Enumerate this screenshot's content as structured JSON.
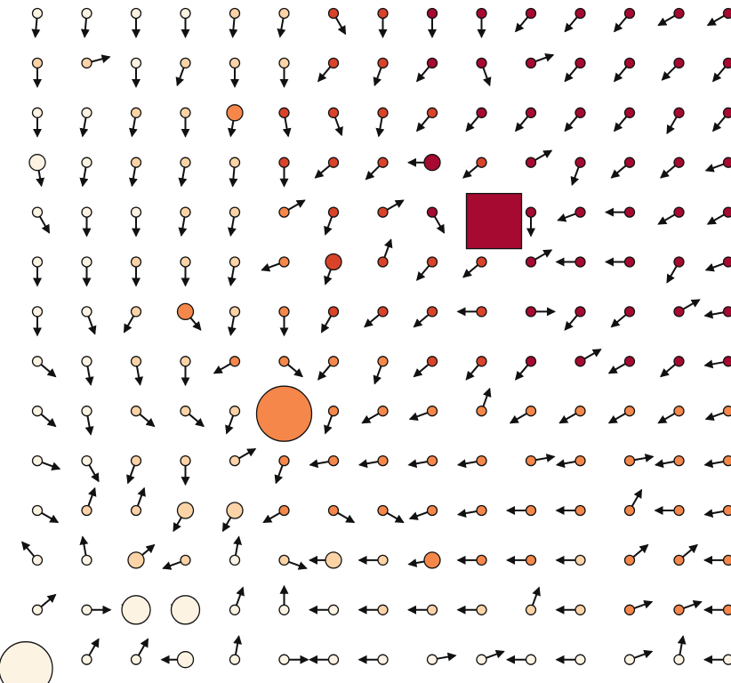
{
  "chart_data": {
    "type": "scatter",
    "title": "",
    "xlabel": "",
    "ylabel": "",
    "grid": false,
    "legend": "none",
    "description_of_encoding": "",
    "cols": 15,
    "rows": 14,
    "colors": {
      "lightest": "#fdf3e3",
      "light": "#fbd3a6",
      "mid": "#f5874a",
      "dark": "#d8432a",
      "darkest": "#a60a30"
    },
    "special": {
      "big_square": {
        "col": 9,
        "row": 4,
        "color": "#a60a30"
      },
      "big_circles": [
        {
          "col": 5,
          "row": 8,
          "color": "#f5874a",
          "angle": -40
        },
        {
          "col": 0,
          "row": 13,
          "color": "#fdf3e3",
          "angle": -40
        },
        {
          "col": 2,
          "row": 12,
          "color": "#fdf3e3",
          "angle": 200
        },
        {
          "col": 3,
          "row": 12,
          "color": "#fdf3e3",
          "angle": 200
        }
      ],
      "medium_circles": [
        {
          "col": 0,
          "row": 3,
          "color": "#fdf3e3"
        },
        {
          "col": 4,
          "row": 2,
          "color": "#f5874a"
        },
        {
          "col": 8,
          "row": 3,
          "color": "#a60a30"
        },
        {
          "col": 6,
          "row": 5,
          "color": "#d8432a"
        },
        {
          "col": 3,
          "row": 6,
          "color": "#f5874a"
        },
        {
          "col": 3,
          "row": 10,
          "color": "#fbd3a6"
        },
        {
          "col": 4,
          "row": 10,
          "color": "#fbd3a6"
        },
        {
          "col": 2,
          "row": 11,
          "color": "#fbd3a6"
        },
        {
          "col": 6,
          "row": 11,
          "color": "#fbd3a6"
        },
        {
          "col": 8,
          "row": 11,
          "color": "#f5874a"
        },
        {
          "col": 3,
          "row": 13,
          "color": "#fdf3e3"
        }
      ]
    },
    "grid_angles": [
      [
        95,
        95,
        90,
        90,
        95,
        100,
        60,
        90,
        90,
        90,
        130,
        130,
        130,
        150,
        150
      ],
      [
        90,
        -15,
        90,
        110,
        90,
        90,
        130,
        110,
        130,
        70,
        -20,
        130,
        130,
        135,
        130
      ],
      [
        90,
        100,
        100,
        90,
        100,
        80,
        70,
        100,
        130,
        130,
        130,
        130,
        130,
        120,
        130
      ],
      [
        80,
        100,
        100,
        100,
        95,
        90,
        140,
        135,
        180,
        140,
        -30,
        110,
        140,
        140,
        160
      ],
      [
        60,
        90,
        90,
        100,
        100,
        -30,
        110,
        -30,
        60,
        0,
        90,
        160,
        180,
        150,
        150
      ],
      [
        90,
        90,
        90,
        90,
        100,
        160,
        110,
        -70,
        130,
        140,
        -30,
        180,
        180,
        120,
        160
      ],
      [
        90,
        70,
        120,
        50,
        100,
        90,
        120,
        140,
        140,
        180,
        0,
        130,
        140,
        -30,
        170
      ],
      [
        40,
        80,
        80,
        90,
        150,
        40,
        130,
        110,
        140,
        130,
        130,
        -30,
        150,
        140,
        170
      ],
      [
        40,
        80,
        40,
        40,
        110,
        0,
        110,
        150,
        160,
        -70,
        150,
        150,
        150,
        150,
        160
      ],
      [
        20,
        60,
        110,
        90,
        -30,
        110,
        170,
        170,
        170,
        170,
        -10,
        170,
        -10,
        170,
        170
      ],
      [
        30,
        -70,
        -70,
        120,
        120,
        150,
        30,
        30,
        160,
        170,
        180,
        180,
        -60,
        180,
        170
      ],
      [
        -130,
        -100,
        -40,
        160,
        -80,
        20,
        180,
        180,
        170,
        180,
        180,
        180,
        -40,
        -40,
        180
      ],
      [
        -40,
        0,
        200,
        200,
        -70,
        -90,
        180,
        180,
        180,
        180,
        -70,
        180,
        -20,
        -20,
        180
      ],
      [
        -40,
        -60,
        -60,
        180,
        -80,
        0,
        180,
        180,
        -10,
        -20,
        180,
        180,
        -20,
        -80,
        180
      ]
    ],
    "grid_colors": [
      [
        "f",
        "f",
        "f",
        "f",
        "l",
        "l",
        "d",
        "d",
        "k",
        "k",
        "k",
        "k",
        "k",
        "k",
        "k"
      ],
      [
        "l",
        "l",
        "f",
        "l",
        "l",
        "l",
        "d",
        "d",
        "k",
        "k",
        "k",
        "k",
        "k",
        "k",
        "k"
      ],
      [
        "f",
        "f",
        "l",
        "l",
        "m",
        "d",
        "d",
        "d",
        "d",
        "k",
        "k",
        "k",
        "k",
        "k",
        "k"
      ],
      [
        "f",
        "f",
        "l",
        "l",
        "l",
        "d",
        "d",
        "d",
        "k",
        "d",
        "k",
        "k",
        "k",
        "k",
        "k"
      ],
      [
        "f",
        "f",
        "f",
        "l",
        "l",
        "m",
        "d",
        "d",
        "k",
        "k",
        "k",
        "k",
        "k",
        "k",
        "k"
      ],
      [
        "f",
        "f",
        "l",
        "l",
        "l",
        "m",
        "d",
        "d",
        "d",
        "d",
        "k",
        "k",
        "k",
        "k",
        "k"
      ],
      [
        "f",
        "f",
        "l",
        "m",
        "l",
        "m",
        "d",
        "d",
        "d",
        "d",
        "k",
        "k",
        "k",
        "k",
        "k"
      ],
      [
        "f",
        "f",
        "l",
        "l",
        "m",
        "m",
        "m",
        "m",
        "d",
        "d",
        "k",
        "k",
        "k",
        "k",
        "k"
      ],
      [
        "f",
        "f",
        "l",
        "l",
        "l",
        "m",
        "m",
        "m",
        "m",
        "m",
        "m",
        "m",
        "m",
        "m",
        "m"
      ],
      [
        "f",
        "f",
        "l",
        "l",
        "l",
        "m",
        "m",
        "m",
        "m",
        "m",
        "m",
        "m",
        "m",
        "m",
        "m"
      ],
      [
        "f",
        "l",
        "l",
        "l",
        "l",
        "m",
        "m",
        "m",
        "m",
        "m",
        "m",
        "m",
        "m",
        "m",
        "m"
      ],
      [
        "f",
        "f",
        "l",
        "l",
        "f",
        "l",
        "l",
        "l",
        "m",
        "m",
        "m",
        "l",
        "m",
        "m",
        "m"
      ],
      [
        "f",
        "f",
        "f",
        "f",
        "f",
        "f",
        "f",
        "l",
        "l",
        "l",
        "l",
        "l",
        "m",
        "m",
        "m"
      ],
      [
        "f",
        "f",
        "f",
        "f",
        "f",
        "f",
        "f",
        "f",
        "f",
        "f",
        "f",
        "f",
        "f",
        "f",
        "f"
      ]
    ]
  }
}
